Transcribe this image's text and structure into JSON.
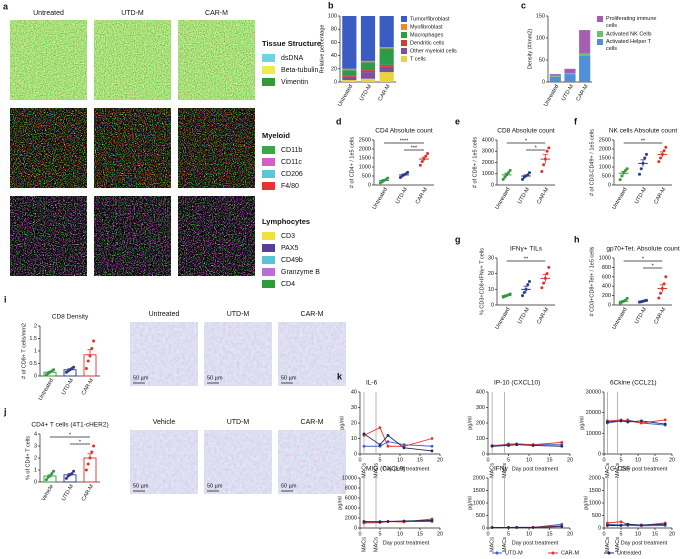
{
  "image_panels": [
    {
      "panel": "a",
      "columns": [
        "Untreated",
        "UTD-M",
        "CAR-M"
      ],
      "legends": [
        {
          "title": "Tissue Structure",
          "items": [
            {
              "name": "dsDNA",
              "color": "#6fd3e6"
            },
            {
              "name": "Beta-tubulin",
              "color": "#f2e94e"
            },
            {
              "name": "Vimentin",
              "color": "#2e9b3c"
            }
          ]
        },
        {
          "title": "Myeloid",
          "items": [
            {
              "name": "CD11b",
              "color": "#3aa845"
            },
            {
              "name": "CD11c",
              "color": "#d35fc8"
            },
            {
              "name": "CD206",
              "color": "#5bc6d8"
            },
            {
              "name": "F4/80",
              "color": "#e8322f"
            }
          ]
        },
        {
          "title": "Lymphocytes",
          "items": [
            {
              "name": "CD3",
              "color": "#f0e03a"
            },
            {
              "name": "PAX5",
              "color": "#5a3d94"
            },
            {
              "name": "CD49b",
              "color": "#58c3d4"
            },
            {
              "name": "Granzyme B",
              "color": "#b86fd6"
            },
            {
              "name": "CD4",
              "color": "#2f9a3a"
            }
          ]
        }
      ]
    },
    {
      "columns": [
        "Untreated",
        "UTD-M",
        "CAR-M"
      ],
      "scale_bar": "50 µm"
    },
    {
      "columns": [
        "Vehicle",
        "UTD-M",
        "CAR-M"
      ],
      "scale_bar": "50 µm"
    }
  ],
  "chart_data": [
    {
      "panel": "b",
      "type": "stacked_bar",
      "ylabel": "Relative percentage",
      "categories": [
        "Untreated",
        "UTD-M",
        "CAR-M"
      ],
      "series": [
        {
          "name": "Tumor/fibroblast",
          "color": "#3a5bbf",
          "values": [
            80,
            68,
            47
          ]
        },
        {
          "name": "Myofibroblast",
          "color": "#f08a24",
          "values": [
            2,
            2,
            2
          ]
        },
        {
          "name": "Macrophages",
          "color": "#2e9b48",
          "values": [
            8,
            12,
            25
          ]
        },
        {
          "name": "Dendritic cells",
          "color": "#d83a2e",
          "values": [
            2,
            3,
            3
          ]
        },
        {
          "name": "Other myeloid cells",
          "color": "#7b4fa8",
          "values": [
            5,
            10,
            8
          ]
        },
        {
          "name": "T cells",
          "color": "#e8d53a",
          "values": [
            3,
            5,
            15
          ]
        }
      ],
      "ylim": [
        0,
        100
      ],
      "yticks": [
        0,
        20,
        40,
        60,
        80,
        100
      ],
      "legend": "right"
    },
    {
      "panel": "c",
      "type": "stacked_bar",
      "ylabel": "Density (#/mm2)",
      "categories": [
        "Untreated",
        "UTD-M",
        "CAR-M"
      ],
      "series": [
        {
          "name": "Proliferating immune cells",
          "color": "#a45fb0",
          "values": [
            4,
            10,
            53
          ]
        },
        {
          "name": "Activated NK Cells",
          "color": "#6cc16a",
          "values": [
            2,
            2,
            5
          ]
        },
        {
          "name": "Activated Helper T cells",
          "color": "#4f8fd8",
          "values": [
            12,
            18,
            60
          ]
        }
      ],
      "ylim": [
        0,
        150
      ],
      "yticks": [
        0,
        50,
        100,
        150
      ],
      "legend": "right"
    },
    {
      "panel": "d",
      "type": "dot",
      "title": "CD4 Absolute count",
      "ylabel": "# of CD4+ / 1e5 cells",
      "categories": [
        "Untreated",
        "UTD-M",
        "CAR-M"
      ],
      "colors": [
        "#2e9b3c",
        "#2b3a8c",
        "#e0302a"
      ],
      "groups": [
        {
          "points": [
            120,
            180,
            250,
            300,
            380
          ],
          "mean": 250,
          "sem": 50
        },
        {
          "points": [
            420,
            500,
            560,
            620,
            700
          ],
          "mean": 560,
          "sem": 50
        },
        {
          "points": [
            1100,
            1300,
            1450,
            1600,
            1750
          ],
          "mean": 1440,
          "sem": 110
        }
      ],
      "annotations": [
        {
          "text": "****",
          "from": "Untreated",
          "to": "CAR-M"
        },
        {
          "text": "***",
          "from": "UTD-M",
          "to": "CAR-M"
        }
      ],
      "ylim": [
        0,
        2500
      ],
      "yticks": [
        0,
        500,
        1000,
        1500,
        2000,
        2500
      ]
    },
    {
      "panel": "e",
      "type": "dot",
      "title": "CD8 Absolute count",
      "ylabel": "# of CD8+ / 1e5 cells",
      "categories": [
        "Untreated",
        "UTD-M",
        "CAR-M"
      ],
      "colors": [
        "#2e9b3c",
        "#2b3a8c",
        "#e0302a"
      ],
      "groups": [
        {
          "points": [
            500,
            700,
            900,
            1100,
            1300
          ],
          "mean": 900,
          "sem": 150
        },
        {
          "points": [
            500,
            700,
            800,
            900,
            1100
          ],
          "mean": 800,
          "sem": 100
        },
        {
          "points": [
            1200,
            1800,
            2300,
            3000,
            3300
          ],
          "mean": 2300,
          "sem": 400
        }
      ],
      "annotations": [
        {
          "text": "*",
          "from": "Untreated",
          "to": "CAR-M"
        },
        {
          "text": "*",
          "from": "UTD-M",
          "to": "CAR-M"
        }
      ],
      "ylim": [
        0,
        4000
      ],
      "yticks": [
        0,
        1000,
        2000,
        3000,
        4000
      ]
    },
    {
      "panel": "f",
      "type": "dot",
      "title": "NK cells Absolute count",
      "ylabel": "# of CD3-CD49+ / 1e5 cells",
      "categories": [
        "Untreated",
        "UTD-M",
        "CAR-M"
      ],
      "colors": [
        "#2e9b3c",
        "#2b3a8c",
        "#e0302a"
      ],
      "groups": [
        {
          "points": [
            300,
            500,
            700,
            800,
            900
          ],
          "mean": 650,
          "sem": 110
        },
        {
          "points": [
            600,
            900,
            1200,
            1500,
            1700
          ],
          "mean": 1200,
          "sem": 200
        },
        {
          "points": [
            1300,
            1500,
            1700,
            1900,
            2100
          ],
          "mean": 1700,
          "sem": 140
        }
      ],
      "annotations": [
        {
          "text": "**",
          "from": "Untreated",
          "to": "CAR-M"
        }
      ],
      "ylim": [
        0,
        2500
      ],
      "yticks": [
        0,
        500,
        1000,
        1500,
        2000,
        2500
      ]
    },
    {
      "panel": "g",
      "type": "dot",
      "title": "IFNγ+ TILs",
      "ylabel": "% CD3+CD8+IFNγ+ T cells",
      "categories": [
        "Untreated",
        "UTD-M",
        "CAR-M"
      ],
      "colors": [
        "#2e9b3c",
        "#2b3a8c",
        "#e0302a"
      ],
      "groups": [
        {
          "points": [
            5,
            5.5,
            6,
            6.5,
            7
          ],
          "mean": 6,
          "sem": 0.5
        },
        {
          "points": [
            6,
            8,
            10,
            13,
            15
          ],
          "mean": 10,
          "sem": 2
        },
        {
          "points": [
            11,
            14,
            17,
            20,
            24
          ],
          "mean": 17,
          "sem": 2.5
        }
      ],
      "annotations": [
        {
          "text": "**",
          "from": "Untreated",
          "to": "CAR-M"
        }
      ],
      "ylim": [
        0,
        30
      ],
      "yticks": [
        0,
        10,
        20,
        30
      ]
    },
    {
      "panel": "h",
      "type": "dot",
      "title": "gp70+Tet. Absolute count",
      "ylabel": "# CD3+CD8+Tet+ / 1e5 cells",
      "categories": [
        "Untreated",
        "UTD-M",
        "CAR-M"
      ],
      "colors": [
        "#2e9b3c",
        "#2b3a8c",
        "#e0302a"
      ],
      "groups": [
        {
          "points": [
            40,
            60,
            80,
            100,
            140
          ],
          "mean": 80,
          "sem": 15
        },
        {
          "points": [
            60,
            70,
            80,
            90,
            100
          ],
          "mean": 80,
          "sem": 8
        },
        {
          "points": [
            150,
            250,
            350,
            450,
            600
          ],
          "mean": 350,
          "sem": 80
        }
      ],
      "annotations": [
        {
          "text": "*",
          "from": "Untreated",
          "to": "CAR-M"
        },
        {
          "text": "*",
          "from": "UTD-M",
          "to": "CAR-M"
        }
      ],
      "ylim": [
        0,
        1000
      ],
      "yticks": [
        0,
        200,
        400,
        600,
        800,
        1000
      ]
    },
    {
      "panel": "i",
      "type": "bar_dot",
      "title": "CD8 Density",
      "ylabel": "# of CD8+ T cells/mm2",
      "categories": [
        "Untreated",
        "UTD-M",
        "CAR-M"
      ],
      "colors": [
        "#2e9b3c",
        "#2b3a8c",
        "#e0302a"
      ],
      "groups": [
        {
          "points": [
            0.05,
            0.1,
            0.15,
            0.2,
            0.25
          ],
          "mean": 0.15,
          "sem": 0.04
        },
        {
          "points": [
            0.15,
            0.2,
            0.25,
            0.3,
            0.35
          ],
          "mean": 0.25,
          "sem": 0.04
        },
        {
          "points": [
            0.3,
            0.6,
            0.8,
            1.1,
            1.4
          ],
          "mean": 0.85,
          "sem": 0.2
        }
      ],
      "ylim": [
        0,
        2
      ],
      "yticks": [
        0,
        0.5,
        1,
        1.5,
        2
      ]
    },
    {
      "panel": "j",
      "type": "bar_dot",
      "title": "CD4+ T cells (4T1-cHER2)",
      "ylabel": "% of CD4+ T cells",
      "categories": [
        "Vehicle",
        "UTD-M",
        "CAR-M"
      ],
      "colors": [
        "#2e9b3c",
        "#2b3a8c",
        "#e0302a"
      ],
      "groups": [
        {
          "points": [
            0.2,
            0.4,
            0.5,
            0.7,
            0.9
          ],
          "mean": 0.5,
          "sem": 0.1
        },
        {
          "points": [
            0.3,
            0.5,
            0.6,
            0.7,
            0.9
          ],
          "mean": 0.6,
          "sem": 0.1
        },
        {
          "points": [
            1.0,
            1.5,
            2.0,
            2.5,
            3.0
          ],
          "mean": 2.0,
          "sem": 0.35
        }
      ],
      "annotations": [
        {
          "text": "*",
          "from": "Vehicle",
          "to": "CAR-M"
        },
        {
          "text": "*",
          "from": "UTD-M",
          "to": "CAR-M"
        }
      ],
      "ylim": [
        0,
        4
      ],
      "yticks": [
        0,
        1,
        2,
        3,
        4
      ]
    },
    {
      "panel": "k",
      "type": "line",
      "title": "IL-6",
      "ylabel": "pg/ml",
      "xlabel": "Day post treatment",
      "x": [
        1,
        5,
        7,
        11,
        18
      ],
      "xlim": [
        0,
        20
      ],
      "xticks": [
        0,
        5,
        10,
        15,
        20
      ],
      "ylim": [
        0,
        40
      ],
      "yticks": [
        0,
        10,
        20,
        30,
        40
      ],
      "vlines": [
        {
          "x": 1,
          "label": "MACs"
        },
        {
          "x": 4,
          "label": "MACs"
        }
      ],
      "legend": "bottom",
      "series": [
        {
          "name": "UTD-M",
          "color": "#3b5fd0",
          "values": [
            5,
            5,
            8,
            6,
            5
          ]
        },
        {
          "name": "CAR-M",
          "color": "#e8302a",
          "values": [
            12,
            17,
            5,
            5,
            10
          ]
        },
        {
          "name": "Untreated",
          "color": "#1f2a5c",
          "values": [
            13,
            6,
            12,
            4,
            2
          ]
        }
      ]
    },
    {
      "type": "line",
      "title": "IP-10 (CXCL10)",
      "ylabel": "pg/ml",
      "xlabel": "Day post treatment",
      "x": [
        1,
        5,
        7,
        11,
        18
      ],
      "xlim": [
        0,
        20
      ],
      "xticks": [
        0,
        5,
        10,
        15,
        20
      ],
      "ylim": [
        0,
        400
      ],
      "yticks": [
        0,
        100,
        200,
        300,
        400
      ],
      "vlines": [
        {
          "x": 1,
          "label": "MACs"
        },
        {
          "x": 4,
          "label": "MACs"
        }
      ],
      "series": [
        {
          "name": "UTD-M",
          "color": "#3b5fd0",
          "values": [
            50,
            65,
            65,
            60,
            60
          ]
        },
        {
          "name": "CAR-M",
          "color": "#e8302a",
          "values": [
            55,
            60,
            65,
            60,
            75
          ]
        },
        {
          "name": "Untreated",
          "color": "#1f2a5c",
          "values": [
            50,
            55,
            60,
            55,
            50
          ]
        }
      ]
    },
    {
      "type": "line",
      "title": "6Ckine (CCL21)",
      "ylabel": "pg/ml",
      "xlabel": "Day post treatment",
      "x": [
        1,
        5,
        7,
        11,
        18
      ],
      "xlim": [
        0,
        20
      ],
      "xticks": [
        0,
        5,
        10,
        15,
        20
      ],
      "ylim": [
        0,
        30000
      ],
      "yticks": [
        0,
        10000,
        20000,
        30000
      ],
      "vlines": [
        {
          "x": 1,
          "label": "MACs"
        },
        {
          "x": 4,
          "label": "MACs"
        }
      ],
      "series": [
        {
          "name": "UTD-M",
          "color": "#3b5fd0",
          "values": [
            15000,
            16000,
            16500,
            15000,
            14000
          ]
        },
        {
          "name": "CAR-M",
          "color": "#e8302a",
          "values": [
            16000,
            16500,
            16000,
            15000,
            16500
          ]
        },
        {
          "name": "Untreated",
          "color": "#1f2a5c",
          "values": [
            15500,
            16000,
            15500,
            16000,
            14500
          ]
        }
      ]
    },
    {
      "type": "line",
      "title": "MIG (CXCL9)",
      "ylabel": "pg/ml",
      "xlabel": "Day post treatment",
      "x": [
        1,
        5,
        7,
        11,
        18
      ],
      "xlim": [
        0,
        20
      ],
      "xticks": [
        0,
        5,
        10,
        15,
        20
      ],
      "ylim": [
        0,
        10000
      ],
      "yticks": [
        0,
        2000,
        4000,
        6000,
        8000,
        10000
      ],
      "vlines": [
        {
          "x": 1,
          "label": "MACs"
        },
        {
          "x": 4,
          "label": "MACs"
        }
      ],
      "series": [
        {
          "name": "UTD-M",
          "color": "#3b5fd0",
          "values": [
            1200,
            1300,
            1300,
            1300,
            1300
          ]
        },
        {
          "name": "CAR-M",
          "color": "#e8302a",
          "values": [
            1000,
            1100,
            1300,
            1200,
            1800
          ]
        },
        {
          "name": "Untreated",
          "color": "#1f2a5c",
          "values": [
            1300,
            1200,
            1300,
            1400,
            1500
          ]
        }
      ]
    },
    {
      "type": "line",
      "title": "IFNγ",
      "ylabel": "pg/ml",
      "xlabel": "Day post treatment",
      "x": [
        1,
        5,
        7,
        11,
        18
      ],
      "xlim": [
        0,
        20
      ],
      "xticks": [
        0,
        5,
        10,
        15,
        20
      ],
      "ylim": [
        0,
        2000
      ],
      "yticks": [
        0,
        500,
        1000,
        1500,
        2000
      ],
      "vlines": [
        {
          "x": 1,
          "label": "MACs"
        },
        {
          "x": 4,
          "label": "MACs"
        }
      ],
      "series": [
        {
          "name": "UTD-M",
          "color": "#3b5fd0",
          "values": [
            20,
            20,
            30,
            20,
            150
          ]
        },
        {
          "name": "CAR-M",
          "color": "#e8302a",
          "values": [
            20,
            20,
            20,
            30,
            80
          ]
        },
        {
          "name": "Untreated",
          "color": "#1f2a5c",
          "values": [
            20,
            20,
            20,
            20,
            60
          ]
        }
      ]
    },
    {
      "type": "line",
      "title": "G-CSF",
      "ylabel": "pg/ml",
      "xlabel": "Day post treatment",
      "x": [
        1,
        5,
        7,
        11,
        18
      ],
      "xlim": [
        0,
        20
      ],
      "xticks": [
        0,
        5,
        10,
        15,
        20
      ],
      "ylim": [
        0,
        2000
      ],
      "yticks": [
        0,
        500,
        1000,
        1500,
        2000
      ],
      "vlines": [
        {
          "x": 1,
          "label": "MACs"
        },
        {
          "x": 4,
          "label": "MACs"
        }
      ],
      "series": [
        {
          "name": "UTD-M",
          "color": "#3b5fd0",
          "values": [
            150,
            120,
            100,
            90,
            100
          ]
        },
        {
          "name": "CAR-M",
          "color": "#e8302a",
          "values": [
            200,
            250,
            150,
            100,
            200
          ]
        },
        {
          "name": "Untreated",
          "color": "#1f2a5c",
          "values": [
            100,
            100,
            150,
            120,
            150
          ]
        }
      ]
    }
  ]
}
